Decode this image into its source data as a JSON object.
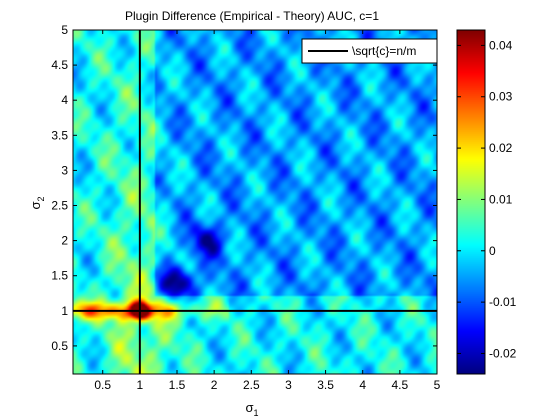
{
  "chart_data": {
    "type": "heatmap",
    "title": "Plugin Difference (Empirical - Theory) AUC, c=1",
    "xlabel": "σ",
    "xlabel_sub": "1",
    "ylabel": "σ",
    "ylabel_sub": "2",
    "xlim": [
      0.1,
      5.0
    ],
    "ylim": [
      0.1,
      5.0
    ],
    "x_ticks": [
      0.5,
      1,
      1.5,
      2,
      2.5,
      3,
      3.5,
      4,
      4.5,
      5
    ],
    "x_tick_labels": [
      "0.5",
      "1",
      "1.5",
      "2",
      "2.5",
      "3",
      "3.5",
      "4",
      "4.5",
      "5"
    ],
    "y_ticks": [
      0.5,
      1,
      1.5,
      2,
      2.5,
      3,
      3.5,
      4,
      4.5,
      5
    ],
    "y_tick_labels": [
      "0.5",
      "1",
      "1.5",
      "2",
      "2.5",
      "3",
      "3.5",
      "4",
      "4.5",
      "5"
    ],
    "clim": [
      -0.024,
      0.043
    ],
    "colorbar_ticks": [
      -0.02,
      -0.01,
      0,
      0.01,
      0.02,
      0.03,
      0.04
    ],
    "colorbar_tick_labels": [
      "-0.02",
      "-0.01",
      "0",
      "0.01",
      "0.02",
      "0.03",
      "0.04"
    ],
    "colormap": "jet",
    "grid": false,
    "legend": {
      "position": "top-right",
      "entries": [
        "\\sqrt{c}=n/m"
      ]
    },
    "reference_lines": [
      {
        "orientation": "vertical",
        "x": 1,
        "color": "#000000"
      },
      {
        "orientation": "horizontal",
        "y": 1,
        "color": "#000000"
      }
    ],
    "field": {
      "baseline": 0.001,
      "features": [
        {
          "kind": "ridge-vertical",
          "x": 1.0,
          "width": 0.45,
          "y_from": 0.1,
          "y_to": 5.0,
          "amplitude": 0.009
        },
        {
          "kind": "ridge-horizontal",
          "y": 1.0,
          "width": 0.13,
          "x_from": 0.1,
          "x_to": 2.2,
          "amplitude": 0.022
        },
        {
          "kind": "peak",
          "x": 1.0,
          "y": 1.0,
          "amplitude": 0.043
        },
        {
          "kind": "trough",
          "x": 1.5,
          "y": 1.4,
          "amplitude": -0.022
        },
        {
          "kind": "trough",
          "x": 1.9,
          "y": 2.0,
          "amplitude": -0.015
        },
        {
          "kind": "region-negative",
          "x_from": 1.2,
          "x_to": 5.0,
          "y_from": 1.2,
          "y_to": 5.0,
          "amplitude": -0.006
        }
      ]
    }
  }
}
